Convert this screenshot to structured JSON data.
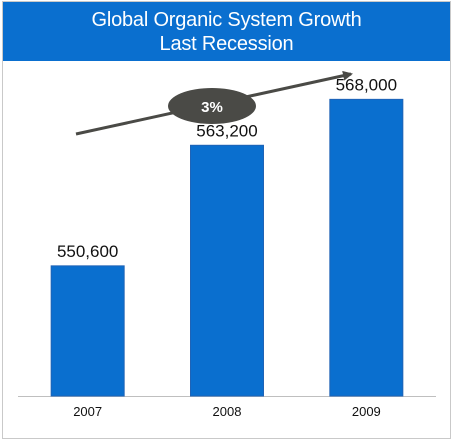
{
  "chart_data": {
    "type": "bar",
    "title": "Global Organic System Growth",
    "subtitle": "Last Recession",
    "categories": [
      "2007",
      "2008",
      "2009"
    ],
    "values": [
      550600,
      563200,
      568000
    ],
    "value_labels": [
      "550,600",
      "563,200",
      "568,000"
    ],
    "xlabel": "",
    "ylabel": "",
    "ylim": [
      537000,
      569500
    ],
    "grid": false,
    "annotation": {
      "text": "3%",
      "kind": "growth-arrow"
    },
    "colors": {
      "title_background": "#0a6fcf",
      "bar": "#0a6fcf",
      "bar_edge": "#1f63b6",
      "arrow": "#4a4a46",
      "badge": "#4a4a46",
      "baseline": "#bfbfbf"
    }
  }
}
